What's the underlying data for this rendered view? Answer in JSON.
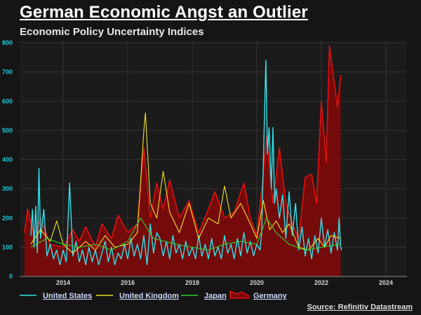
{
  "title": "German Economic Angst an Outlier",
  "subtitle": "Economic Policy Uncertainty Indices",
  "source": "Source: Refinitiv Datastream",
  "chart_data": {
    "type": "line",
    "title": "German Economic Angst an Outlier",
    "subtitle": "Economic Policy Uncertainty Indices",
    "xlim": [
      2012.75,
      2024.7
    ],
    "ylim": [
      0,
      800
    ],
    "x_ticks": [
      "2014",
      "2016",
      "2018",
      "2020",
      "2022",
      "2024"
    ],
    "y_ticks": [
      "0",
      "100",
      "200",
      "300",
      "400",
      "500",
      "600",
      "700",
      "800"
    ],
    "grid": true,
    "legend_position": "bottom",
    "series": [
      {
        "name": "United States",
        "color": "#33e0e8",
        "style": "line",
        "points": [
          [
            2013.0,
            140
          ],
          [
            2013.05,
            230
          ],
          [
            2013.1,
            100
          ],
          [
            2013.15,
            240
          ],
          [
            2013.2,
            80
          ],
          [
            2013.25,
            370
          ],
          [
            2013.3,
            130
          ],
          [
            2013.4,
            230
          ],
          [
            2013.5,
            70
          ],
          [
            2013.6,
            110
          ],
          [
            2013.7,
            60
          ],
          [
            2013.8,
            90
          ],
          [
            2013.9,
            40
          ],
          [
            2014.0,
            90
          ],
          [
            2014.1,
            50
          ],
          [
            2014.2,
            320
          ],
          [
            2014.3,
            70
          ],
          [
            2014.4,
            120
          ],
          [
            2014.5,
            50
          ],
          [
            2014.6,
            90
          ],
          [
            2014.7,
            40
          ],
          [
            2014.8,
            100
          ],
          [
            2014.9,
            50
          ],
          [
            2015.0,
            90
          ],
          [
            2015.1,
            40
          ],
          [
            2015.2,
            80
          ],
          [
            2015.3,
            120
          ],
          [
            2015.4,
            50
          ],
          [
            2015.5,
            100
          ],
          [
            2015.6,
            40
          ],
          [
            2015.7,
            80
          ],
          [
            2015.8,
            60
          ],
          [
            2015.9,
            110
          ],
          [
            2016.0,
            60
          ],
          [
            2016.1,
            130
          ],
          [
            2016.2,
            70
          ],
          [
            2016.3,
            110
          ],
          [
            2016.4,
            60
          ],
          [
            2016.5,
            140
          ],
          [
            2016.6,
            40
          ],
          [
            2016.7,
            180
          ],
          [
            2016.8,
            80
          ],
          [
            2016.9,
            150
          ],
          [
            2017.0,
            130
          ],
          [
            2017.1,
            70
          ],
          [
            2017.2,
            120
          ],
          [
            2017.3,
            60
          ],
          [
            2017.4,
            140
          ],
          [
            2017.5,
            80
          ],
          [
            2017.6,
            110
          ],
          [
            2017.7,
            60
          ],
          [
            2017.8,
            120
          ],
          [
            2017.9,
            70
          ],
          [
            2018.0,
            100
          ],
          [
            2018.1,
            60
          ],
          [
            2018.2,
            140
          ],
          [
            2018.3,
            70
          ],
          [
            2018.4,
            110
          ],
          [
            2018.5,
            60
          ],
          [
            2018.6,
            130
          ],
          [
            2018.7,
            70
          ],
          [
            2018.8,
            100
          ],
          [
            2018.9,
            60
          ],
          [
            2019.0,
            140
          ],
          [
            2019.1,
            80
          ],
          [
            2019.2,
            110
          ],
          [
            2019.3,
            60
          ],
          [
            2019.4,
            130
          ],
          [
            2019.5,
            70
          ],
          [
            2019.6,
            150
          ],
          [
            2019.7,
            80
          ],
          [
            2019.8,
            120
          ],
          [
            2019.9,
            70
          ],
          [
            2020.0,
            110
          ],
          [
            2020.1,
            90
          ],
          [
            2020.15,
            150
          ],
          [
            2020.2,
            380
          ],
          [
            2020.28,
            740
          ],
          [
            2020.33,
            420
          ],
          [
            2020.38,
            510
          ],
          [
            2020.45,
            300
          ],
          [
            2020.5,
            510
          ],
          [
            2020.55,
            250
          ],
          [
            2020.6,
            300
          ],
          [
            2020.7,
            200
          ],
          [
            2020.8,
            280
          ],
          [
            2020.9,
            130
          ],
          [
            2021.0,
            290
          ],
          [
            2021.1,
            140
          ],
          [
            2021.2,
            250
          ],
          [
            2021.3,
            90
          ],
          [
            2021.4,
            170
          ],
          [
            2021.5,
            70
          ],
          [
            2021.6,
            130
          ],
          [
            2021.7,
            60
          ],
          [
            2021.8,
            140
          ],
          [
            2021.9,
            80
          ],
          [
            2022.0,
            200
          ],
          [
            2022.1,
            100
          ],
          [
            2022.2,
            160
          ],
          [
            2022.3,
            80
          ],
          [
            2022.4,
            150
          ],
          [
            2022.5,
            90
          ],
          [
            2022.55,
            200
          ],
          [
            2022.6,
            100
          ],
          [
            2022.63,
            90
          ]
        ]
      },
      {
        "name": "United Kingdom",
        "color": "#f0e020",
        "style": "line",
        "points": [
          [
            2013.0,
            110
          ],
          [
            2013.3,
            160
          ],
          [
            2013.6,
            120
          ],
          [
            2013.8,
            190
          ],
          [
            2014.0,
            110
          ],
          [
            2014.3,
            80
          ],
          [
            2014.7,
            120
          ],
          [
            2015.0,
            90
          ],
          [
            2015.3,
            140
          ],
          [
            2015.6,
            100
          ],
          [
            2016.0,
            110
          ],
          [
            2016.3,
            150
          ],
          [
            2016.5,
            500
          ],
          [
            2016.55,
            560
          ],
          [
            2016.7,
            250
          ],
          [
            2016.9,
            200
          ],
          [
            2017.1,
            360
          ],
          [
            2017.3,
            220
          ],
          [
            2017.6,
            150
          ],
          [
            2017.9,
            250
          ],
          [
            2018.2,
            130
          ],
          [
            2018.5,
            200
          ],
          [
            2018.8,
            180
          ],
          [
            2019.0,
            310
          ],
          [
            2019.2,
            200
          ],
          [
            2019.5,
            250
          ],
          [
            2019.8,
            180
          ],
          [
            2020.0,
            130
          ],
          [
            2020.2,
            260
          ],
          [
            2020.4,
            160
          ],
          [
            2020.6,
            190
          ],
          [
            2020.8,
            150
          ],
          [
            2021.0,
            180
          ],
          [
            2021.3,
            100
          ],
          [
            2021.6,
            90
          ],
          [
            2021.9,
            130
          ],
          [
            2022.1,
            100
          ],
          [
            2022.3,
            140
          ],
          [
            2022.6,
            130
          ]
        ]
      },
      {
        "name": "Japan",
        "color": "#30d030",
        "style": "line",
        "points": [
          [
            2013.0,
            100
          ],
          [
            2013.5,
            130
          ],
          [
            2014.0,
            110
          ],
          [
            2014.5,
            100
          ],
          [
            2015.0,
            110
          ],
          [
            2015.5,
            90
          ],
          [
            2016.0,
            120
          ],
          [
            2016.4,
            200
          ],
          [
            2016.8,
            130
          ],
          [
            2017.5,
            110
          ],
          [
            2018.0,
            100
          ],
          [
            2018.5,
            90
          ],
          [
            2019.0,
            110
          ],
          [
            2019.5,
            120
          ],
          [
            2020.0,
            110
          ],
          [
            2020.3,
            200
          ],
          [
            2020.6,
            150
          ],
          [
            2021.0,
            110
          ],
          [
            2021.5,
            90
          ],
          [
            2022.0,
            100
          ],
          [
            2022.6,
            110
          ]
        ]
      },
      {
        "name": "Germany",
        "color": "#e01010",
        "fill": "#7a0a0a",
        "style": "area",
        "points": [
          [
            2012.8,
            150
          ],
          [
            2012.9,
            230
          ],
          [
            2013.1,
            140
          ],
          [
            2013.3,
            200
          ],
          [
            2013.6,
            110
          ],
          [
            2014.0,
            100
          ],
          [
            2014.3,
            160
          ],
          [
            2014.5,
            120
          ],
          [
            2014.7,
            170
          ],
          [
            2015.0,
            100
          ],
          [
            2015.2,
            180
          ],
          [
            2015.5,
            130
          ],
          [
            2015.7,
            210
          ],
          [
            2016.0,
            150
          ],
          [
            2016.3,
            180
          ],
          [
            2016.5,
            440
          ],
          [
            2016.7,
            200
          ],
          [
            2016.9,
            320
          ],
          [
            2017.1,
            230
          ],
          [
            2017.3,
            330
          ],
          [
            2017.6,
            200
          ],
          [
            2017.9,
            260
          ],
          [
            2018.2,
            150
          ],
          [
            2018.5,
            230
          ],
          [
            2018.7,
            290
          ],
          [
            2019.0,
            200
          ],
          [
            2019.3,
            220
          ],
          [
            2019.6,
            320
          ],
          [
            2019.8,
            200
          ],
          [
            2020.0,
            140
          ],
          [
            2020.2,
            350
          ],
          [
            2020.3,
            480
          ],
          [
            2020.5,
            250
          ],
          [
            2020.7,
            440
          ],
          [
            2020.9,
            250
          ],
          [
            2021.1,
            180
          ],
          [
            2021.3,
            130
          ],
          [
            2021.5,
            340
          ],
          [
            2021.7,
            350
          ],
          [
            2021.85,
            250
          ],
          [
            2022.0,
            600
          ],
          [
            2022.15,
            390
          ],
          [
            2022.25,
            790
          ],
          [
            2022.5,
            580
          ],
          [
            2022.6,
            690
          ]
        ]
      }
    ]
  }
}
